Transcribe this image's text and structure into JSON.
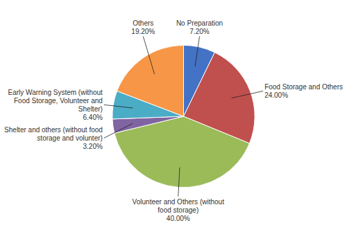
{
  "chart_data": {
    "type": "pie",
    "categories": [
      "No Preparation",
      "Food Storage and Others",
      "Volunteer and Others (without\nfood storage)",
      "Shelter and others (without food\nstorage and volunter)",
      "Early Warning System (without\nFood Storage, Volunteer and\nShelter)",
      "Others"
    ],
    "values": [
      7.2,
      24.0,
      40.0,
      3.2,
      6.4,
      19.2
    ],
    "value_labels": [
      "7.20%",
      "24.00%",
      "40.00%",
      "3.20%",
      "6.40%",
      "19.20%"
    ],
    "colors": [
      "#4472C4",
      "#C0504D",
      "#9BBB59",
      "#8064A2",
      "#4BACC6",
      "#F79646"
    ],
    "data_labels": true
  }
}
